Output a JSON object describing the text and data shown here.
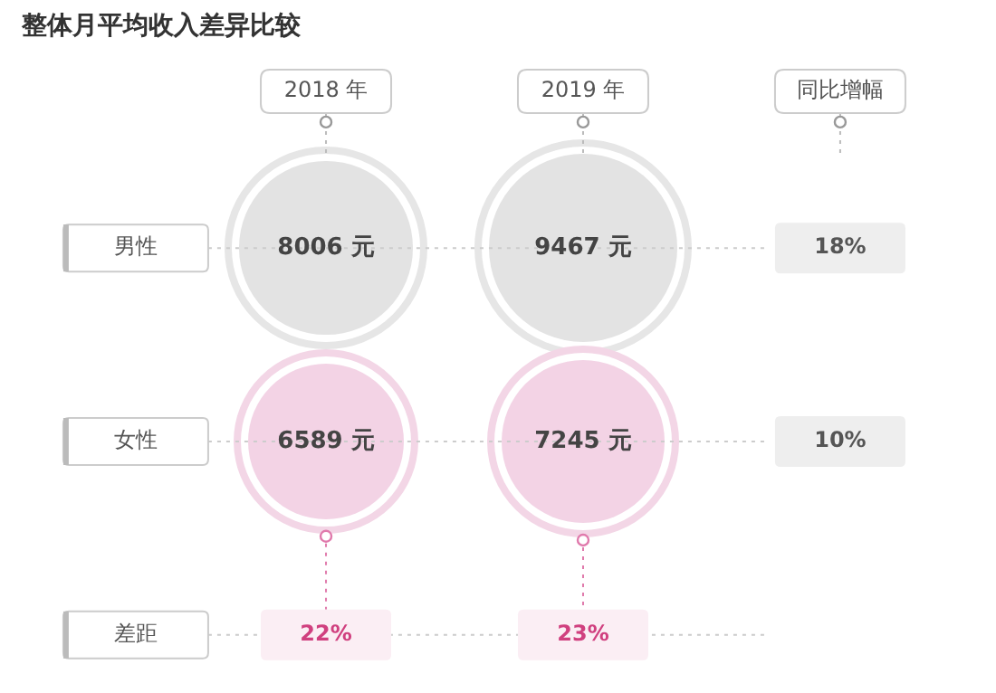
{
  "chart_data": {
    "type": "heatmap",
    "title": "整体月平均收入差异比较",
    "categories": [
      "2018 年",
      "2019 年",
      "同比增幅"
    ],
    "y_categories": [
      "男性",
      "女性",
      "差距"
    ],
    "cells": [
      [
        8006,
        9467,
        18
      ],
      [
        6589,
        7245,
        10
      ],
      [
        22,
        23,
        null
      ]
    ],
    "cell_labels": [
      [
        "8006 元",
        "9467 元",
        "18%"
      ],
      [
        "6589 元",
        "7245 元",
        "10%"
      ],
      [
        "22%",
        "23%",
        null
      ]
    ]
  }
}
